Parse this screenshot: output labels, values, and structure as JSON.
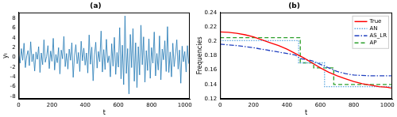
{
  "chart_data": [
    {
      "type": "line",
      "title": "(a)",
      "x_label": "t",
      "y_label": "yₜ",
      "color": "#1f77b4",
      "grid": false,
      "xlim": [
        0,
        1030
      ],
      "xticks": [
        0,
        200,
        400,
        600,
        800,
        1000
      ],
      "ylim": [
        -8.5,
        9.2
      ],
      "yticks": [
        -8,
        -6,
        -4,
        -2,
        0,
        2,
        4,
        6,
        8
      ],
      "x": [
        0,
        8,
        16,
        24,
        32,
        40,
        48,
        56,
        64,
        72,
        80,
        88,
        96,
        104,
        112,
        120,
        128,
        136,
        144,
        152,
        160,
        168,
        176,
        184,
        192,
        200,
        208,
        216,
        224,
        232,
        240,
        248,
        256,
        264,
        272,
        280,
        288,
        296,
        304,
        312,
        320,
        328,
        336,
        344,
        352,
        360,
        368,
        376,
        384,
        392,
        400,
        408,
        416,
        424,
        432,
        440,
        448,
        456,
        464,
        472,
        480,
        488,
        496,
        504,
        512,
        520,
        528,
        536,
        544,
        552,
        560,
        568,
        576,
        584,
        592,
        600,
        608,
        616,
        624,
        632,
        640,
        648,
        656,
        664,
        672,
        680,
        688,
        696,
        704,
        712,
        720,
        728,
        736,
        744,
        752,
        760,
        768,
        776,
        784,
        792,
        800,
        808,
        816,
        824,
        832,
        840,
        848,
        856,
        864,
        872,
        880,
        888,
        896,
        904,
        912,
        920,
        928,
        936,
        944,
        952,
        960,
        968,
        976,
        984,
        992,
        1000,
        1008,
        1016,
        1024
      ],
      "values": [
        0.5,
        -1.2,
        1.8,
        -0.6,
        2.9,
        -2.1,
        0.3,
        1.4,
        -1.7,
        3.2,
        -0.9,
        0.7,
        -2.8,
        1.1,
        -0.4,
        2.2,
        -3.1,
        0.9,
        -1.5,
        3.6,
        -1.0,
        0.2,
        2.4,
        -2.3,
        1.3,
        -0.8,
        3.9,
        -2.6,
        0.6,
        -1.1,
        2.0,
        -3.4,
        1.5,
        -0.3,
        4.3,
        -1.9,
        0.8,
        -2.4,
        1.7,
        -0.6,
        3.0,
        -4.1,
        0.4,
        2.6,
        -1.3,
        1.0,
        -2.9,
        3.3,
        -0.7,
        1.9,
        -1.6,
        0.9,
        -3.2,
        4.6,
        -1.4,
        2.1,
        -4.8,
        0.5,
        3.1,
        -2.2,
        1.2,
        -0.9,
        5.4,
        -3.0,
        1.6,
        -2.5,
        3.7,
        -1.1,
        0.3,
        -4.0,
        2.8,
        -1.8,
        4.1,
        -3.5,
        1.0,
        -2.0,
        6.1,
        -4.4,
        2.5,
        -5.6,
        8.5,
        -3.3,
        1.8,
        -7.5,
        4.7,
        -2.1,
        5.9,
        -4.9,
        3.0,
        -6.2,
        2.2,
        -3.6,
        6.6,
        -1.5,
        4.2,
        -5.1,
        1.4,
        -2.7,
        3.8,
        -4.3,
        2.0,
        -1.2,
        5.2,
        -3.8,
        0.8,
        -2.6,
        4.4,
        -4.6,
        1.7,
        -0.5,
        3.4,
        -2.9,
        6.3,
        -3.1,
        1.1,
        -4.0,
        2.9,
        -1.9,
        0.6,
        3.6,
        -2.4,
        1.5,
        -5.3,
        2.3,
        -0.9,
        1.2,
        -3.0,
        2.4,
        -1.3
      ]
    },
    {
      "type": "line",
      "title": "(b)",
      "x_label": "t",
      "y_label": "Frequencies",
      "grid": false,
      "legend": "upper right",
      "xlim": [
        0,
        1030
      ],
      "xticks": [
        0,
        200,
        400,
        600,
        800,
        1000
      ],
      "ylim": [
        0.12,
        0.24
      ],
      "yticks": [
        0.12,
        0.14,
        0.16,
        0.18,
        0.2,
        0.22,
        0.24
      ],
      "series": [
        {
          "name": "True",
          "color": "#ff0000",
          "line_style": "solid",
          "x": [
            0,
            50,
            100,
            150,
            200,
            250,
            300,
            350,
            400,
            450,
            500,
            550,
            600,
            650,
            700,
            750,
            800,
            850,
            900,
            950,
            1000,
            1024
          ],
          "values": [
            0.213,
            0.2125,
            0.211,
            0.209,
            0.206,
            0.202,
            0.198,
            0.194,
            0.189,
            0.183,
            0.177,
            0.17,
            0.163,
            0.157,
            0.152,
            0.148,
            0.144,
            0.141,
            0.139,
            0.137,
            0.136,
            0.135
          ]
        },
        {
          "name": "AN",
          "color": "#5fa8e0",
          "line_style": "dotted",
          "x": [
            0,
            470,
            470,
            625,
            625,
            1024
          ],
          "values": [
            0.201,
            0.201,
            0.17,
            0.17,
            0.137,
            0.137
          ]
        },
        {
          "name": "AS_LR",
          "color": "#1f3fbf",
          "line_style": "dashdot",
          "x": [
            0,
            100,
            200,
            300,
            400,
            450,
            480,
            550,
            600,
            650,
            700,
            750,
            800,
            900,
            1024
          ],
          "values": [
            0.196,
            0.194,
            0.191,
            0.187,
            0.183,
            0.181,
            0.176,
            0.173,
            0.168,
            0.163,
            0.158,
            0.155,
            0.153,
            0.152,
            0.152
          ]
        },
        {
          "name": "AP",
          "color": "#2ca02c",
          "line_style": "dashed",
          "x": [
            0,
            480,
            480,
            560,
            560,
            680,
            680,
            1024
          ],
          "values": [
            0.205,
            0.205,
            0.17,
            0.17,
            0.163,
            0.163,
            0.14,
            0.14
          ]
        }
      ]
    }
  ]
}
